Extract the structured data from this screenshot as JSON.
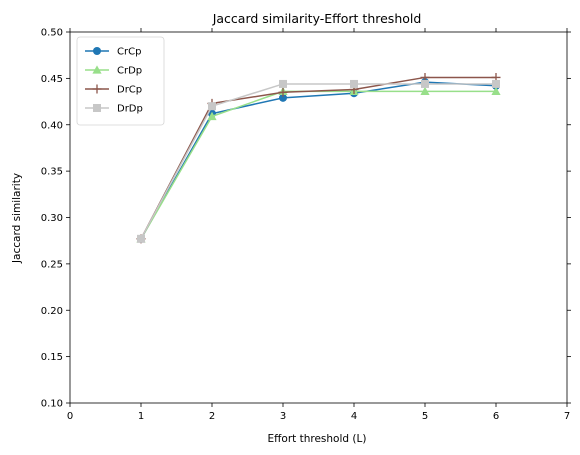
{
  "chart_data": {
    "type": "line",
    "title": "Jaccard similarity-Effort threshold",
    "xlabel": "Effort threshold (L)",
    "ylabel": "Jaccard similarity",
    "xlim": [
      0,
      7
    ],
    "ylim": [
      0.1,
      0.5
    ],
    "xticks": [
      0,
      1,
      2,
      3,
      4,
      5,
      6,
      7
    ],
    "yticks": [
      0.1,
      0.15,
      0.2,
      0.25,
      0.3,
      0.35,
      0.4,
      0.45,
      0.5
    ],
    "grid": false,
    "legend": "top-left",
    "x": [
      1,
      2,
      3,
      4,
      5,
      6
    ],
    "series": [
      {
        "name": "CrCp",
        "color": "#1f77b4",
        "marker": "circle",
        "values": [
          0.277,
          0.412,
          0.429,
          0.434,
          0.446,
          0.442
        ]
      },
      {
        "name": "CrDp",
        "color": "#98df8a",
        "marker": "triangle",
        "values": [
          0.277,
          0.409,
          0.436,
          0.436,
          0.436,
          0.436
        ]
      },
      {
        "name": "DrCp",
        "color": "#8c564b",
        "marker": "plus",
        "values": [
          0.277,
          0.423,
          0.435,
          0.438,
          0.451,
          0.451
        ]
      },
      {
        "name": "DrDp",
        "color": "#c7c7c7",
        "marker": "square",
        "values": [
          0.277,
          0.42,
          0.444,
          0.444,
          0.444,
          0.444
        ]
      }
    ]
  }
}
